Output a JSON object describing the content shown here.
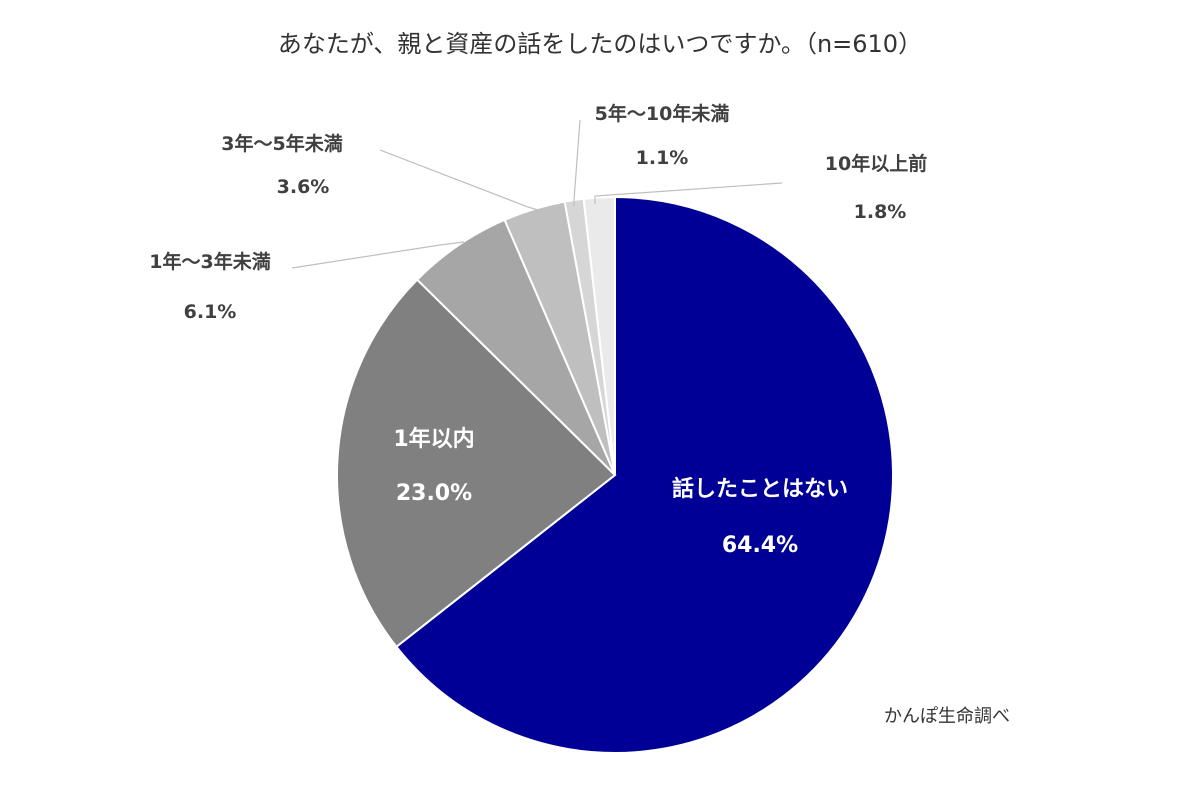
{
  "chart_data": {
    "type": "pie",
    "title": "あなたが、親と資産の話をしたのはいつですか。（n=610）",
    "slices": [
      {
        "label": "話したことはない",
        "value": 64.4,
        "value_label": "64.4%",
        "color": "#000096"
      },
      {
        "label": "1年以内",
        "value": 23.0,
        "value_label": "23.0%",
        "color": "#808080"
      },
      {
        "label": "1年～3年未満",
        "value": 6.1,
        "value_label": "6.1%",
        "color": "#a6a6a6"
      },
      {
        "label": "3年～5年未満",
        "value": 3.6,
        "value_label": "3.6%",
        "color": "#bfbfbf"
      },
      {
        "label": "5年～10年未満",
        "value": 1.1,
        "value_label": "1.1%",
        "color": "#d6d6d6"
      },
      {
        "label": "10年以上前",
        "value": 1.8,
        "value_label": "1.8%",
        "color": "#eaeaea"
      }
    ],
    "start_angle": "12 o'clock",
    "direction": "clockwise",
    "legend": "none",
    "source": "かんぽ生命調べ"
  }
}
